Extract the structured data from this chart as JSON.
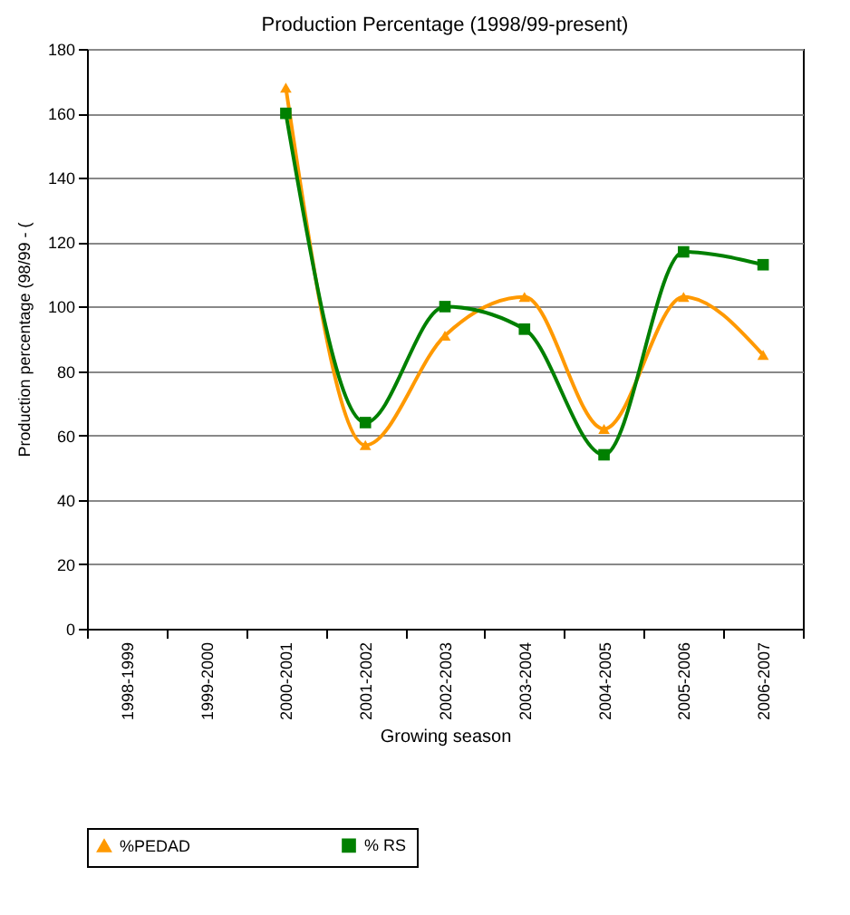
{
  "chart_data": {
    "type": "line",
    "title": "Production Percentage (1998/99-present)",
    "xlabel": "Growing season",
    "ylabel": "Production percentage (98/99 - (",
    "categories": [
      "1998-1999",
      "1999-2000",
      "2000-2001",
      "2001-2002",
      "2002-2003",
      "2003-2004",
      "2004-2005",
      "2005-2006",
      "2006-2007"
    ],
    "series": [
      {
        "name": "%PEDAD",
        "color": "#ff9900",
        "marker": "triangle",
        "values": [
          null,
          null,
          168,
          57,
          91,
          103,
          62,
          103,
          85
        ]
      },
      {
        "name": "% RS",
        "color": "#008000",
        "marker": "square",
        "values": [
          null,
          null,
          160,
          64,
          100,
          93,
          54,
          117,
          113
        ]
      }
    ],
    "ylim": [
      0,
      180
    ],
    "yticks": [
      0,
      20,
      40,
      60,
      80,
      100,
      120,
      140,
      160,
      180
    ],
    "grid": "y",
    "legend": "bottom"
  }
}
